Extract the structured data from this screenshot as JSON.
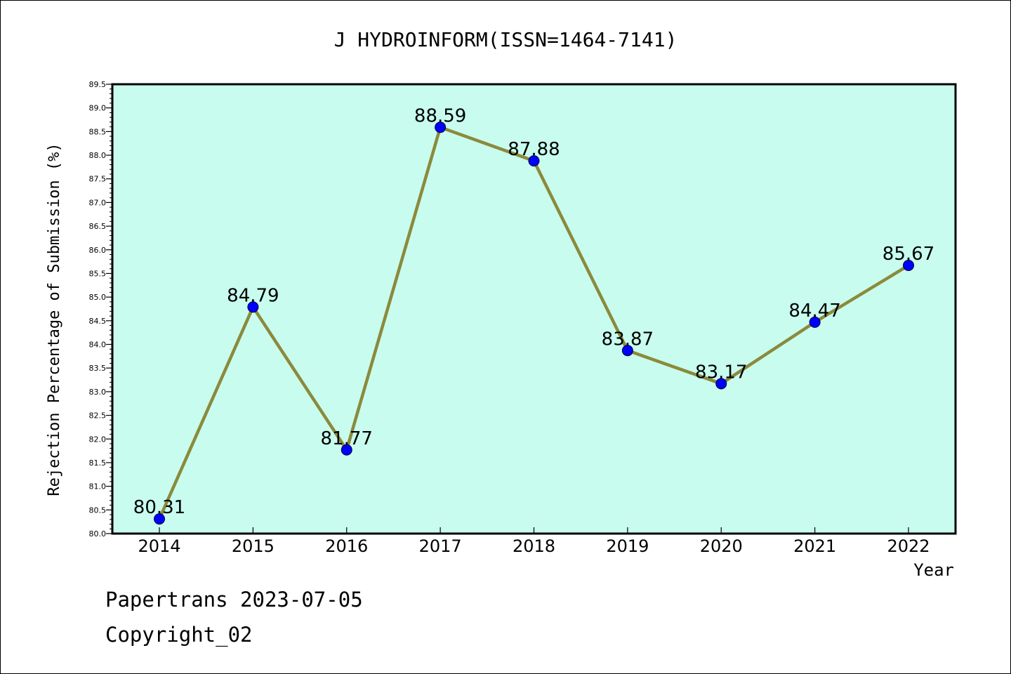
{
  "chart_data": {
    "type": "line",
    "title": "J HYDROINFORM(ISSN=1464-7141)",
    "xlabel": "Year",
    "ylabel": "Rejection Percentage of Submission (%)",
    "categories": [
      "2014",
      "2015",
      "2016",
      "2017",
      "2018",
      "2019",
      "2020",
      "2021",
      "2022"
    ],
    "values": [
      80.31,
      84.79,
      81.77,
      88.59,
      87.88,
      83.87,
      83.17,
      84.47,
      85.67
    ],
    "data_labels": [
      "80.31",
      "84.79",
      "81.77",
      "88.59",
      "87.88",
      "83.87",
      "83.17",
      "84.47",
      "85.67"
    ],
    "ylim": [
      80.0,
      89.5
    ],
    "yticks": [
      "80.0",
      "80.5",
      "81.0",
      "81.5",
      "82.0",
      "82.5",
      "83.0",
      "83.5",
      "84.0",
      "84.5",
      "85.0",
      "85.5",
      "86.0",
      "86.5",
      "87.0",
      "87.5",
      "88.0",
      "88.5",
      "89.0",
      "89.5"
    ],
    "grid": false,
    "colors": {
      "plot_background": "#c8fcee",
      "line": "#8b8a3c",
      "marker": "#0000ff"
    }
  },
  "footer": {
    "line1": "Papertrans 2023-07-05",
    "line2": "Copyright_02"
  }
}
